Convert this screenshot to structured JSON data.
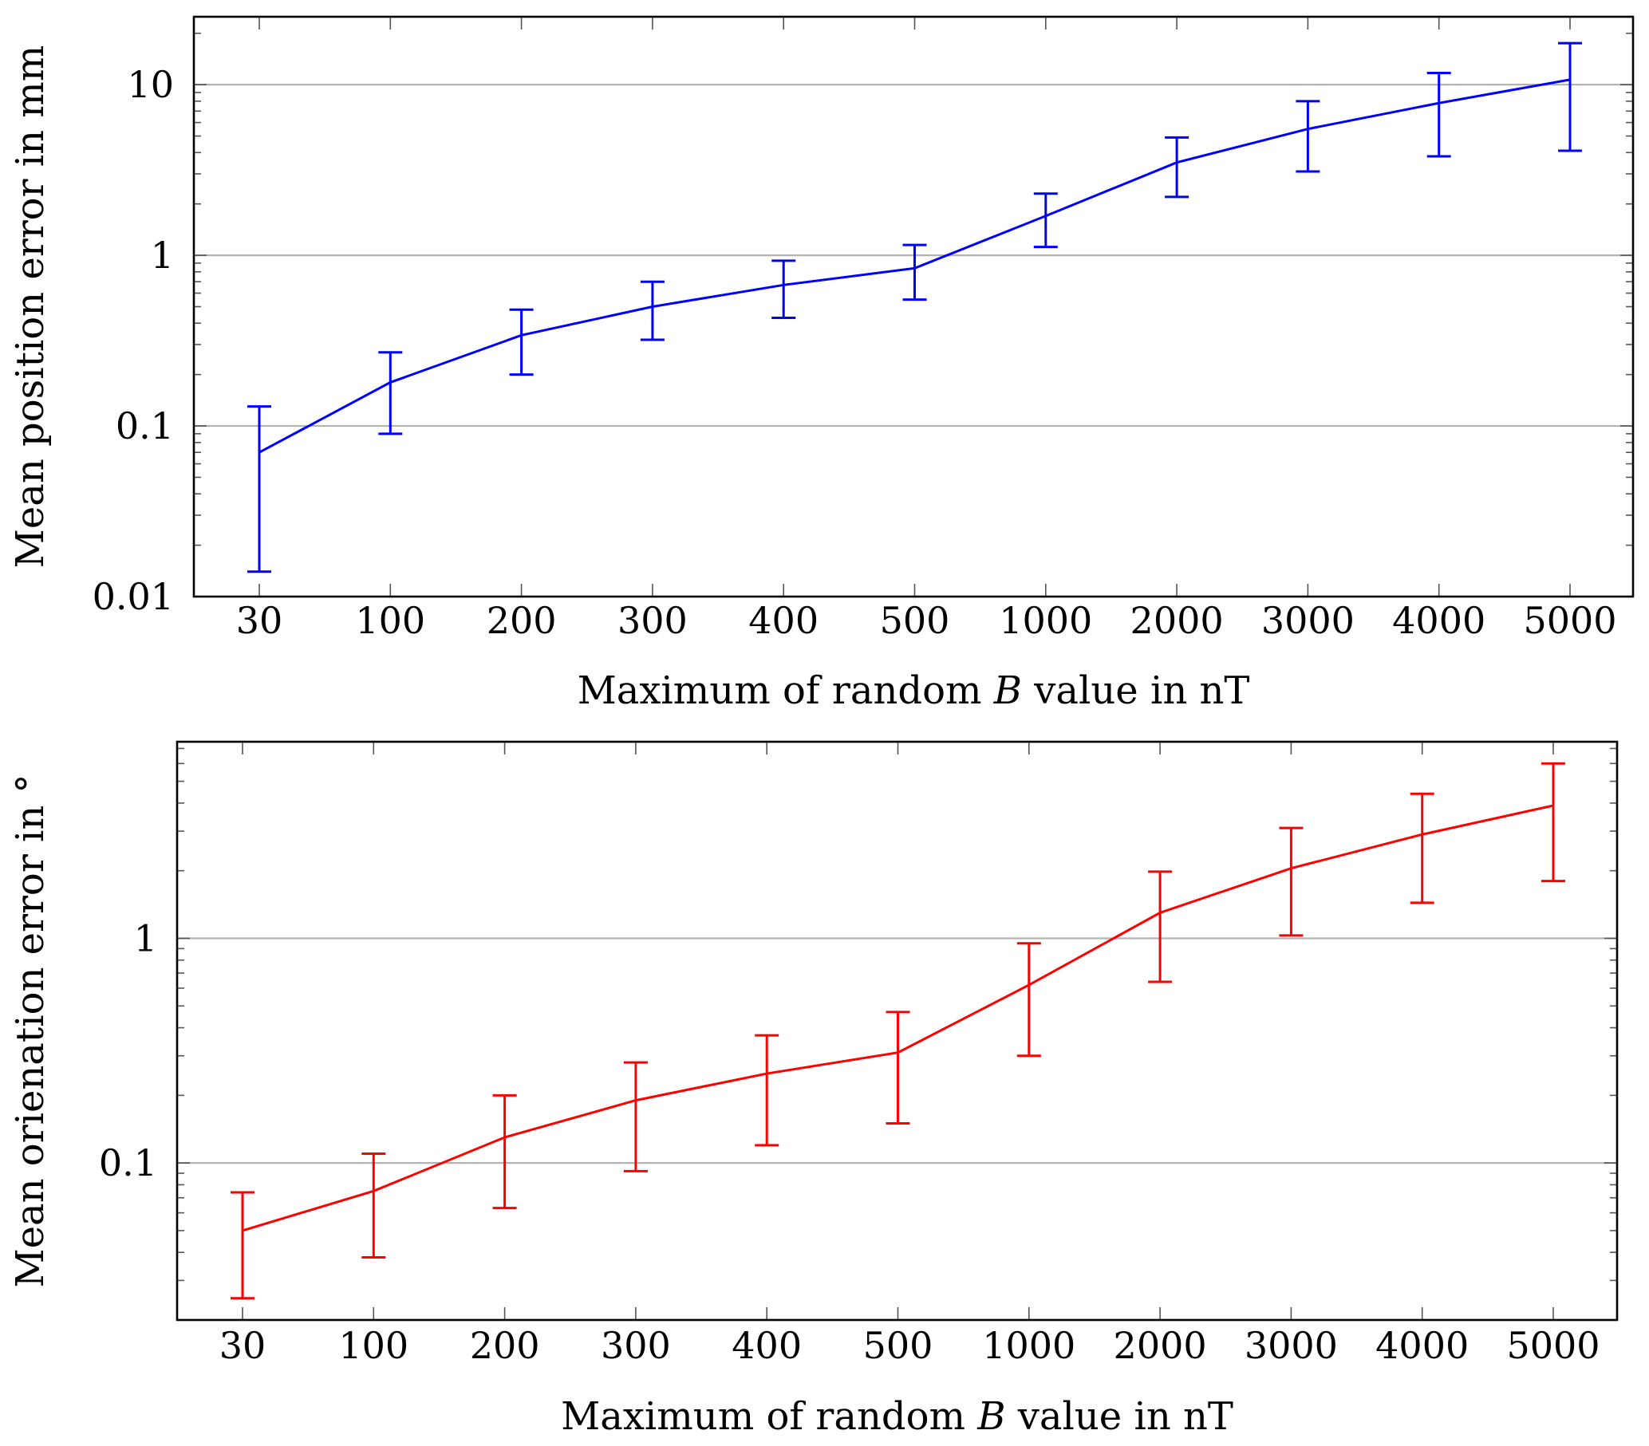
{
  "chart_data": [
    {
      "type": "line",
      "y_scale": "log",
      "categories": [
        "30",
        "100",
        "200",
        "300",
        "400",
        "500",
        "1000",
        "2000",
        "3000",
        "4000",
        "5000"
      ],
      "series": [
        {
          "name": "Mean position error",
          "color": "#0000ff",
          "values": [
            0.07,
            0.18,
            0.34,
            0.5,
            0.67,
            0.84,
            1.7,
            3.5,
            5.5,
            7.8,
            10.7
          ],
          "err_low": [
            0.014,
            0.09,
            0.2,
            0.32,
            0.43,
            0.55,
            1.12,
            2.2,
            3.1,
            3.8,
            4.1
          ],
          "err_high": [
            0.13,
            0.27,
            0.48,
            0.7,
            0.93,
            1.15,
            2.3,
            4.9,
            8.0,
            11.7,
            17.5
          ]
        }
      ],
      "ylim": [
        0.01,
        25
      ],
      "y_ticks": [
        "0.01",
        "0.1",
        "1",
        "10"
      ],
      "y_tick_values": [
        0.01,
        0.1,
        1,
        10
      ],
      "grid": "horizontal major",
      "xlabel_prefix": "Maximum of random ",
      "xlabel_var": "B",
      "xlabel_suffix": " value in nT",
      "ylabel": "Mean position error in mm"
    },
    {
      "type": "line",
      "y_scale": "log",
      "categories": [
        "30",
        "100",
        "200",
        "300",
        "400",
        "500",
        "1000",
        "2000",
        "3000",
        "4000",
        "5000"
      ],
      "series": [
        {
          "name": "Mean orientation error",
          "color": "#ff0000",
          "values": [
            0.05,
            0.075,
            0.13,
            0.19,
            0.25,
            0.31,
            0.62,
            1.3,
            2.05,
            2.9,
            3.9
          ],
          "err_low": [
            0.025,
            0.038,
            0.063,
            0.092,
            0.12,
            0.15,
            0.3,
            0.64,
            1.03,
            1.44,
            1.8
          ],
          "err_high": [
            0.074,
            0.11,
            0.2,
            0.28,
            0.37,
            0.47,
            0.95,
            1.98,
            3.1,
            4.4,
            6.0
          ]
        }
      ],
      "ylim": [
        0.02,
        7.5
      ],
      "y_ticks": [
        "0.1",
        "1"
      ],
      "y_tick_values": [
        0.1,
        1
      ],
      "grid": "horizontal major",
      "xlabel_prefix": "Maximum of random ",
      "xlabel_var": "B",
      "xlabel_suffix": " value in nT",
      "ylabel": "Mean orienation error in °"
    }
  ]
}
